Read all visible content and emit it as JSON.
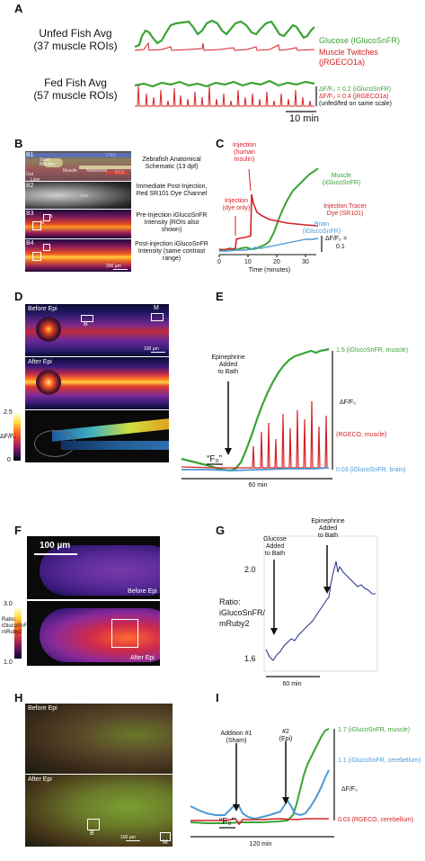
{
  "panelA": {
    "letter": "A",
    "unfed_label_1": "Unfed Fish Avg",
    "unfed_label_2": "(37 muscle ROIs)",
    "fed_label_1": "Fed Fish Avg",
    "fed_label_2": "(57 muscle ROIs)",
    "legend_glucose": "Glucose (iGlucoSnFR)",
    "legend_twitch_1": "Muscle Twitches",
    "legend_twitch_2": "(jRGECO1a)",
    "scale_green": "ΔF/F₀ = 0.2 (iGlucoSnFR)",
    "scale_red": "ΔF/F₀ = 0.4 (jRGECO1a)",
    "scale_note": "(unfed/fed on same scale)",
    "time_scale": "10 min"
  },
  "panelB": {
    "letter": "B",
    "sub_labels": [
      "B1",
      "B2",
      "B3",
      "B4"
    ],
    "anatomy": [
      "CNS",
      "Swim Bladder",
      "Muscle",
      "Notochord",
      "PCV",
      "Gut",
      "Liver",
      "Eye"
    ],
    "roi_labels": [
      "M",
      "B"
    ],
    "scale_bar": "200 µm",
    "desc1": "Zebrafish Anatomical Schematic (13 dpf)",
    "desc2": "Immediate Post-Injection, Red SR101 Dye Channel",
    "desc3": "Pre-Injection iGlucoSnFR Intensity (ROIs also shown)",
    "desc4": "Post-injection iGlucoSnFR Intensity (same contrast range)"
  },
  "panelC": {
    "letter": "C",
    "inj_insulin": "Injection (human Insulin)",
    "inj_dye": "Injection (dye only)",
    "muscle": "Muscle (iGlucoSnFR)",
    "tracer": "Injection Tracer Dye (SR101)",
    "brain": "Brain (iGlucoSnFR)",
    "scale_1": "ΔF/F₀ =",
    "scale_2": "0.1",
    "xticks": [
      "0",
      "10",
      "20",
      "30"
    ],
    "xlabel": "Time (minutes)"
  },
  "panelD": {
    "letter": "D",
    "before": "Before Epi",
    "after": "After Epi",
    "roi_b": "B",
    "roi_m": "M",
    "scale": "100 µm",
    "cbar_max": "2.5",
    "cbar_min": "0",
    "cbar_label": "ΔF/F₀"
  },
  "panelE": {
    "letter": "E",
    "epi_1": "Epinephrine",
    "epi_2": "Added",
    "epi_3": "to Bath",
    "f0": "“F₀”",
    "muscle": "1.5 (iGlucoSnFR, muscle)",
    "rgeco": "(RGECO, muscle)",
    "brain": "0.03 (iGlucoSnFR, brain)",
    "ylabel": "ΔF/F₀",
    "time": "60 min"
  },
  "panelF": {
    "letter": "F",
    "scale": "100 µm",
    "before": "Before Epi",
    "after": "After Epi",
    "cbar_max": "3.0",
    "cbar_min": "1.0",
    "ratio_label": "Ratio: iGlucoSnFR/ mRuby2"
  },
  "panelG": {
    "letter": "G",
    "glucose_1": "Glucose",
    "glucose_2": "Added",
    "glucose_3": "to Bath",
    "epi_1": "Epinephrine",
    "epi_2": "Added",
    "epi_3": "to Bath",
    "ratio_1": "Ratio:",
    "ratio_2": "iGlucoSnFR/",
    "ratio_3": "mRuby2",
    "y_top": "2.0",
    "y_bottom": "1.6",
    "time": "60 min"
  },
  "panelH": {
    "letter": "H",
    "before": "Before Epi",
    "after": "After Epi",
    "roi_b": "B",
    "roi_m": "M",
    "scale": "100 µm"
  },
  "panelI": {
    "letter": "I",
    "add1_1": "Addition #1",
    "add1_2": "(Sham)",
    "add2_1": "#2",
    "add2_2": "(Epi)",
    "f0": "“F₀”",
    "muscle": "1.7 (iGlucoSnFR, muscle)",
    "cerebellum": "1.1 (iGlucoSnFR, cerebellum)",
    "ylabel": "ΔF/F₀",
    "rgeco": "0.03 (RGECO, cerebellum)",
    "time": "120 min"
  },
  "colors": {
    "green": "#3aa335",
    "red": "#d62024",
    "blue": "#4a9ad8",
    "navy": "#2c3a8c"
  }
}
